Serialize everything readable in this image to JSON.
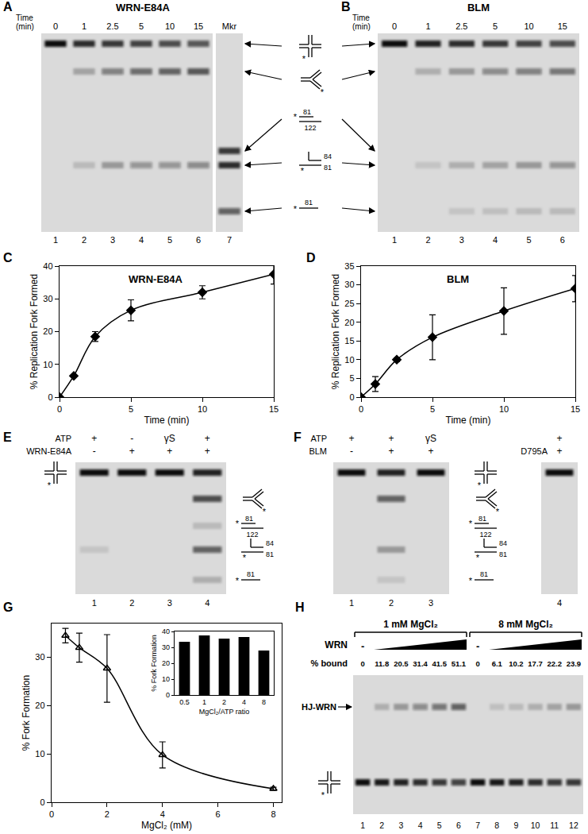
{
  "chart_data": [
    {
      "type": "line",
      "annotations": [
        {
          "text": "C"
        }
      ],
      "title": "WRN-E84A",
      "xlabel": "Time (min)",
      "ylabel": "% Replication Fork Formed",
      "x": [
        0,
        1,
        2.5,
        5,
        10,
        15
      ],
      "values": [
        0,
        6.5,
        18.5,
        26.5,
        32,
        37.5
      ],
      "errors": [
        0,
        0.3,
        1.5,
        3.2,
        2,
        3
      ],
      "color": "#000000",
      "marker": "diamond",
      "xlim": [
        0,
        15
      ],
      "xticks": [
        0,
        5,
        10,
        15
      ],
      "ylim": [
        0,
        40
      ],
      "yticks": [
        0,
        10,
        20,
        30,
        40
      ],
      "grid": false
    },
    {
      "type": "line",
      "annotations": [
        {
          "text": "D"
        }
      ],
      "title": "BLM",
      "xlabel": "Time (min)",
      "ylabel": "% Replication Fork Formed",
      "x": [
        0,
        1,
        2.5,
        5,
        10,
        15
      ],
      "values": [
        0,
        3.5,
        10,
        16,
        23,
        29
      ],
      "errors": [
        0,
        2,
        0.5,
        6,
        6.2,
        3.5
      ],
      "color": "#000000",
      "marker": "diamond",
      "xlim": [
        0,
        15
      ],
      "xticks": [
        0,
        5,
        10,
        15
      ],
      "ylim": [
        0,
        35
      ],
      "yticks": [
        0,
        5,
        10,
        15,
        20,
        25,
        30,
        35
      ],
      "grid": false
    },
    {
      "type": "line",
      "annotations": [
        {
          "text": "G"
        }
      ],
      "xlabel": "MgCl₂ (mM)",
      "ylabel": "% Fork Formation",
      "x": [
        0.5,
        1,
        2,
        4,
        8
      ],
      "values": [
        34.5,
        32,
        27.7,
        9.8,
        2.8
      ],
      "errors": [
        1.5,
        3,
        7,
        2.7,
        0.3
      ],
      "color": "#000000",
      "marker": "triangle-up-open",
      "xlim": [
        0,
        8.3
      ],
      "xticks": [
        0,
        2,
        4,
        6,
        8
      ],
      "ylim": [
        0,
        37
      ],
      "yticks": [
        0,
        10,
        20,
        30
      ],
      "grid": false
    },
    {
      "type": "bar",
      "xlabel": "MgCl₂/ATP ratio",
      "ylabel": "% Fork Formation",
      "categories": [
        "0.5",
        "1",
        "2",
        "4",
        "8"
      ],
      "values": [
        33.5,
        37.5,
        35.5,
        36.5,
        28
      ],
      "color": "#000000",
      "ylim": [
        0,
        40
      ],
      "yticks": [
        0,
        10,
        20,
        30,
        40
      ],
      "grid": false
    }
  ],
  "species": [
    {
      "texts": []
    },
    {
      "texts": []
    },
    {
      "texts": [
        "81",
        "122"
      ]
    },
    {
      "texts": [
        "84",
        "81"
      ]
    },
    {
      "texts": [
        "81"
      ]
    }
  ],
  "label_mark": "*",
  "gels": {
    "A": {
      "panel": "A",
      "title": "WRN-E84A",
      "row_label": "Time (min)",
      "lane_labels": [
        "0",
        "1",
        "2.5",
        "5",
        "10",
        "15",
        "Mkr"
      ],
      "lane_numbers": [
        1,
        2,
        3,
        4,
        5,
        6,
        7
      ],
      "bands": [
        {
          "species": 0,
          "intensity": [
            1,
            0.85,
            0.8,
            0.75,
            0.7,
            0.65,
            0
          ]
        },
        {
          "species": 1,
          "intensity": [
            0,
            0.25,
            0.45,
            0.55,
            0.6,
            0.65,
            0
          ]
        },
        {
          "species": 2,
          "intensity": [
            0,
            0,
            0,
            0,
            0,
            0,
            0.8
          ]
        },
        {
          "species": 3,
          "intensity": [
            0,
            0.15,
            0.3,
            0.35,
            0.35,
            0.4,
            0.85
          ]
        },
        {
          "species": 4,
          "intensity": [
            0,
            0,
            0,
            0,
            0,
            0,
            0.6
          ]
        }
      ]
    },
    "B": {
      "panel": "B",
      "title": "BLM",
      "row_label": "Time (min)",
      "lane_labels": [
        "0",
        "1",
        "2.5",
        "5",
        "10",
        "15"
      ],
      "lane_numbers": [
        1,
        2,
        3,
        4,
        5,
        6
      ],
      "bands": [
        {
          "species": 0,
          "intensity": [
            1,
            0.9,
            0.85,
            0.8,
            0.75,
            0.7
          ]
        },
        {
          "species": 1,
          "intensity": [
            0,
            0.2,
            0.3,
            0.4,
            0.45,
            0.5
          ]
        },
        {
          "species": 3,
          "intensity": [
            0,
            0.1,
            0.2,
            0.25,
            0.3,
            0.35
          ]
        },
        {
          "species": 4,
          "intensity": [
            0,
            0,
            0.1,
            0.12,
            0.15,
            0.15
          ]
        }
      ]
    },
    "E": {
      "panel": "E",
      "rows": [
        {
          "label": "ATP",
          "marks": [
            "+",
            "-",
            "γS",
            "+"
          ]
        },
        {
          "label": "WRN-E84A",
          "marks": [
            "-",
            "+",
            "+",
            "+"
          ]
        }
      ],
      "lane_numbers": [
        1,
        2,
        3,
        4
      ],
      "bands": [
        {
          "species": 0,
          "intensity": [
            1,
            1,
            1,
            0.9
          ]
        },
        {
          "species": 1,
          "intensity": [
            0,
            0,
            0,
            0.7
          ]
        },
        {
          "species": 2,
          "intensity": [
            0,
            0,
            0,
            0.15
          ]
        },
        {
          "species": 3,
          "intensity": [
            0.1,
            0,
            0,
            0.6
          ]
        },
        {
          "species": 4,
          "intensity": [
            0,
            0,
            0,
            0.2
          ]
        }
      ]
    },
    "F": {
      "panel": "F",
      "rows": [
        {
          "label": "ATP",
          "marks": [
            "+",
            "+",
            "γS",
            "+"
          ]
        },
        {
          "label": "BLM",
          "marks": [
            "-",
            "+",
            "+",
            "+"
          ]
        }
      ],
      "mutant_label": "D795A",
      "lane_numbers": [
        1,
        2,
        3,
        4
      ],
      "bands": [
        {
          "species": 0,
          "intensity": [
            1,
            0.9,
            1,
            1
          ]
        },
        {
          "species": 1,
          "intensity": [
            0,
            0.6,
            0,
            0
          ]
        },
        {
          "species": 3,
          "intensity": [
            0,
            0.3,
            0,
            0
          ]
        },
        {
          "species": 4,
          "intensity": [
            0,
            0.1,
            0,
            0
          ]
        }
      ]
    },
    "H": {
      "panel": "H",
      "groups": [
        "1 mM MgCl₂",
        "8 mM MgCl₂"
      ],
      "protein_label": "WRN",
      "no_protein_mark": "-",
      "row_label": "% bound",
      "percent_bound": [
        0,
        11.8,
        20.5,
        31.4,
        41.5,
        51.1,
        0,
        6.1,
        10.2,
        17.7,
        22.2,
        23.9
      ],
      "complex_label": "HJ-WRN",
      "lane_numbers": [
        1,
        2,
        3,
        4,
        5,
        6,
        7,
        8,
        9,
        10,
        11,
        12
      ],
      "complex_intensity": [
        0,
        0.2,
        0.3,
        0.4,
        0.5,
        0.6,
        0,
        0.12,
        0.15,
        0.2,
        0.25,
        0.3
      ],
      "free_intensity": [
        1,
        0.95,
        0.9,
        0.85,
        0.8,
        0.75,
        1,
        0.95,
        0.9,
        0.85,
        0.8,
        0.8
      ]
    }
  }
}
